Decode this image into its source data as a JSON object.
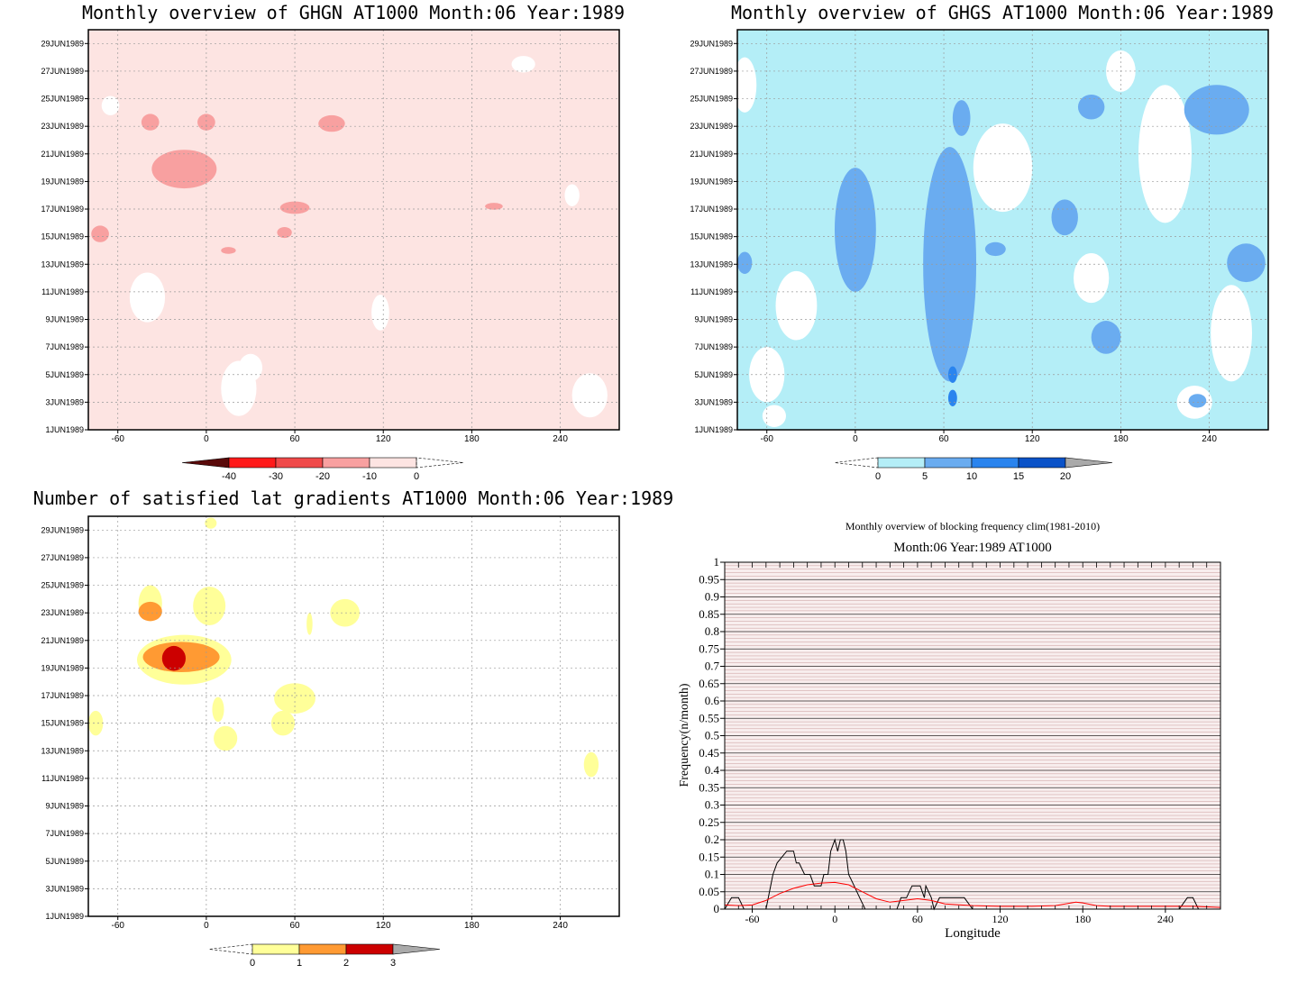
{
  "chart_data": [
    {
      "type": "heatmap",
      "title": "Monthly overview of GHGN AT1000 Month:06 Year:1989",
      "x_ticks": [
        "-60",
        "0",
        "60",
        "120",
        "180",
        "240"
      ],
      "x_tick_values": [
        -60,
        0,
        60,
        120,
        180,
        240
      ],
      "xlim": [
        -80,
        280
      ],
      "y_ticks": [
        "1JUN1989",
        "3JUN1989",
        "5JUN1989",
        "7JUN1989",
        "9JUN1989",
        "11JUN1989",
        "13JUN1989",
        "15JUN1989",
        "17JUN1989",
        "19JUN1989",
        "21JUN1989",
        "23JUN1989",
        "25JUN1989",
        "27JUN1989",
        "29JUN1989"
      ],
      "ylim": [
        1,
        30
      ],
      "colorbar": {
        "labels": [
          "-40",
          "-30",
          "-20",
          "-10",
          "0"
        ],
        "colors": [
          "#5a0a0a",
          "#ff1a1a",
          "#f04a4a",
          "#f8a0a0",
          "#fde4e2"
        ]
      },
      "field_color": "#fde4e2",
      "regions": [
        {
          "lon": -15,
          "day": 19.9,
          "rx": 22,
          "ry": 1.4,
          "level": "-10"
        },
        {
          "lon": -38,
          "day": 23.3,
          "rx": 6,
          "ry": 0.6,
          "level": "-10"
        },
        {
          "lon": 0,
          "day": 23.3,
          "rx": 6,
          "ry": 0.6,
          "level": "-10"
        },
        {
          "lon": 85,
          "day": 23.2,
          "rx": 9,
          "ry": 0.6,
          "level": "-10"
        },
        {
          "lon": 60,
          "day": 17.1,
          "rx": 10,
          "ry": 0.45,
          "level": "-10"
        },
        {
          "lon": -72,
          "day": 15.2,
          "rx": 6,
          "ry": 0.6,
          "level": "-10"
        },
        {
          "lon": 53,
          "day": 15.3,
          "rx": 5,
          "ry": 0.4,
          "level": "-10"
        },
        {
          "lon": 15,
          "day": 14.0,
          "rx": 5,
          "ry": 0.25,
          "level": "-10"
        },
        {
          "lon": 195,
          "day": 17.2,
          "rx": 6,
          "ry": 0.25,
          "level": "-10"
        }
      ]
    },
    {
      "type": "heatmap",
      "title": "Monthly overview of GHGS AT1000 Month:06 Year:1989",
      "x_ticks": [
        "-60",
        "0",
        "60",
        "120",
        "180",
        "240"
      ],
      "x_tick_values": [
        -60,
        0,
        60,
        120,
        180,
        240
      ],
      "xlim": [
        -80,
        280
      ],
      "y_ticks": [
        "1JUN1989",
        "3JUN1989",
        "5JUN1989",
        "7JUN1989",
        "9JUN1989",
        "11JUN1989",
        "13JUN1989",
        "15JUN1989",
        "17JUN1989",
        "19JUN1989",
        "21JUN1989",
        "23JUN1989",
        "25JUN1989",
        "27JUN1989",
        "29JUN1989"
      ],
      "ylim": [
        1,
        30
      ],
      "colorbar": {
        "labels": [
          "0",
          "5",
          "10",
          "15",
          "20"
        ],
        "colors": [
          "#b4eef7",
          "#6aacf0",
          "#2a84ee",
          "#0a52c8",
          "#aaaaaa"
        ]
      },
      "regions": [
        {
          "lon": 64,
          "day": 13.0,
          "rx": 18,
          "ry": 8.5,
          "level": "5"
        },
        {
          "lon": 0,
          "day": 15.5,
          "rx": 14,
          "ry": 4.5,
          "level": "5"
        },
        {
          "lon": 245,
          "day": 24.2,
          "rx": 22,
          "ry": 1.8,
          "level": "5"
        },
        {
          "lon": 160,
          "day": 24.4,
          "rx": 9,
          "ry": 0.9,
          "level": "5"
        },
        {
          "lon": 72,
          "day": 23.6,
          "rx": 6,
          "ry": 1.3,
          "level": "5"
        },
        {
          "lon": 142,
          "day": 16.4,
          "rx": 9,
          "ry": 1.3,
          "level": "5"
        },
        {
          "lon": 265,
          "day": 13.1,
          "rx": 13,
          "ry": 1.4,
          "level": "5"
        },
        {
          "lon": 170,
          "day": 7.7,
          "rx": 10,
          "ry": 1.2,
          "level": "5"
        },
        {
          "lon": -75,
          "day": 13.1,
          "rx": 5,
          "ry": 0.8,
          "level": "5"
        },
        {
          "lon": 95,
          "day": 14.1,
          "rx": 7,
          "ry": 0.5,
          "level": "5"
        },
        {
          "lon": 232,
          "day": 3.1,
          "rx": 6,
          "ry": 0.5,
          "level": "5"
        },
        {
          "lon": 66,
          "day": 5.0,
          "rx": 3,
          "ry": 0.6,
          "level": "10"
        },
        {
          "lon": 66,
          "day": 3.3,
          "rx": 3,
          "ry": 0.6,
          "level": "10"
        }
      ]
    },
    {
      "type": "heatmap",
      "title": "Number of satisfied lat gradients AT1000 Month:06 Year:1989",
      "x_ticks": [
        "-60",
        "0",
        "60",
        "120",
        "180",
        "240"
      ],
      "x_tick_values": [
        -60,
        0,
        60,
        120,
        180,
        240
      ],
      "xlim": [
        -80,
        280
      ],
      "y_ticks": [
        "1JUN1989",
        "3JUN1989",
        "5JUN1989",
        "7JUN1989",
        "9JUN1989",
        "11JUN1989",
        "13JUN1989",
        "15JUN1989",
        "17JUN1989",
        "19JUN1989",
        "21JUN1989",
        "23JUN1989",
        "25JUN1989",
        "27JUN1989",
        "29JUN1989"
      ],
      "ylim": [
        1,
        30
      ],
      "colorbar": {
        "labels": [
          "0",
          "1",
          "2",
          "3"
        ],
        "colors": [
          "#ffff99",
          "#ff9a33",
          "#cc0000",
          "#aaaaaa"
        ]
      },
      "regions": [
        {
          "lon": -15,
          "day": 19.6,
          "rx": 32,
          "ry": 1.8,
          "level": "1"
        },
        {
          "lon": -38,
          "day": 23.7,
          "rx": 8,
          "ry": 1.3,
          "level": "1"
        },
        {
          "lon": 2,
          "day": 23.5,
          "rx": 11,
          "ry": 1.4,
          "level": "1"
        },
        {
          "lon": 60,
          "day": 16.8,
          "rx": 14,
          "ry": 1.1,
          "level": "1"
        },
        {
          "lon": 52,
          "day": 15.0,
          "rx": 8,
          "ry": 0.9,
          "level": "1"
        },
        {
          "lon": 13,
          "day": 13.9,
          "rx": 8,
          "ry": 0.9,
          "level": "1"
        },
        {
          "lon": 8,
          "day": 16.0,
          "rx": 4,
          "ry": 0.9,
          "level": "1"
        },
        {
          "lon": 94,
          "day": 23.0,
          "rx": 10,
          "ry": 1.0,
          "level": "1"
        },
        {
          "lon": -75,
          "day": 15.0,
          "rx": 5,
          "ry": 0.9,
          "level": "1"
        },
        {
          "lon": 70,
          "day": 22.2,
          "rx": 2,
          "ry": 0.8,
          "level": "1"
        },
        {
          "lon": 3,
          "day": 29.5,
          "rx": 4,
          "ry": 0.4,
          "level": "1"
        },
        {
          "lon": 261,
          "day": 12.0,
          "rx": 5,
          "ry": 0.9,
          "level": "1"
        },
        {
          "lon": -17,
          "day": 19.8,
          "rx": 26,
          "ry": 1.1,
          "level": "2"
        },
        {
          "lon": -38,
          "day": 23.1,
          "rx": 8,
          "ry": 0.7,
          "level": "2"
        },
        {
          "lon": -22,
          "day": 19.7,
          "rx": 8,
          "ry": 0.9,
          "level": "3"
        }
      ]
    },
    {
      "type": "line",
      "title": "Monthly overview of blocking frequency clim(1981-2010)",
      "subtitle": "Month:06 Year:1989  AT1000",
      "xlabel": "Longitude",
      "ylabel": "Frequency(n/month)",
      "xlim": [
        -80,
        280
      ],
      "ylim": [
        0,
        1
      ],
      "x_ticks": [
        "-60",
        "0",
        "60",
        "120",
        "180",
        "240"
      ],
      "x_tick_values": [
        -60,
        0,
        60,
        120,
        180,
        240
      ],
      "y_ticks": [
        "0",
        "0.05",
        "0.1",
        "0.15",
        "0.2",
        "0.25",
        "0.3",
        "0.35",
        "0.4",
        "0.45",
        "0.5",
        "0.55",
        "0.6",
        "0.65",
        "0.7",
        "0.75",
        "0.8",
        "0.85",
        "0.9",
        "0.95",
        "1"
      ],
      "grid": true,
      "series": [
        {
          "color": "#000000",
          "x": [
            -80,
            -75,
            -70,
            -66,
            -58,
            -50,
            -45,
            -42,
            -35,
            -30,
            -28,
            -26,
            -22,
            -18,
            -15,
            -10,
            -8,
            -5,
            -3,
            0,
            2,
            4,
            6,
            8,
            10,
            14,
            18,
            22,
            26,
            30,
            40,
            45,
            48,
            52,
            56,
            58,
            62,
            65,
            66,
            70,
            72,
            76,
            80,
            84,
            90,
            94,
            100,
            110,
            120,
            140,
            160,
            180,
            190,
            200,
            240,
            250,
            256,
            260,
            264,
            270
          ],
          "y": [
            0.0,
            0.033,
            0.033,
            0.0,
            0.0,
            0.0,
            0.1,
            0.133,
            0.167,
            0.167,
            0.133,
            0.133,
            0.1,
            0.1,
            0.067,
            0.067,
            0.1,
            0.1,
            0.167,
            0.2,
            0.167,
            0.2,
            0.2,
            0.167,
            0.1,
            0.067,
            0.033,
            0.0,
            0.0,
            0.0,
            0.0,
            0.0,
            0.033,
            0.033,
            0.067,
            0.067,
            0.067,
            0.033,
            0.067,
            0.033,
            0.0,
            0.033,
            0.033,
            0.033,
            0.033,
            0.033,
            0.0,
            0.0,
            0.0,
            0.0,
            0.0,
            0.0,
            0.0,
            0.0,
            0.0,
            0.0,
            0.033,
            0.033,
            0.0,
            0.0
          ]
        },
        {
          "color": "#ff0000",
          "x": [
            -80,
            -70,
            -60,
            -50,
            -40,
            -30,
            -20,
            -10,
            0,
            10,
            20,
            30,
            40,
            50,
            60,
            70,
            80,
            100,
            120,
            140,
            160,
            175,
            180,
            190,
            200,
            220,
            240,
            260,
            280
          ],
          "y": [
            0.012,
            0.01,
            0.012,
            0.025,
            0.045,
            0.06,
            0.07,
            0.075,
            0.077,
            0.07,
            0.05,
            0.03,
            0.02,
            0.025,
            0.03,
            0.025,
            0.015,
            0.01,
            0.008,
            0.008,
            0.01,
            0.02,
            0.018,
            0.01,
            0.008,
            0.008,
            0.008,
            0.008,
            0.005
          ]
        }
      ]
    }
  ]
}
